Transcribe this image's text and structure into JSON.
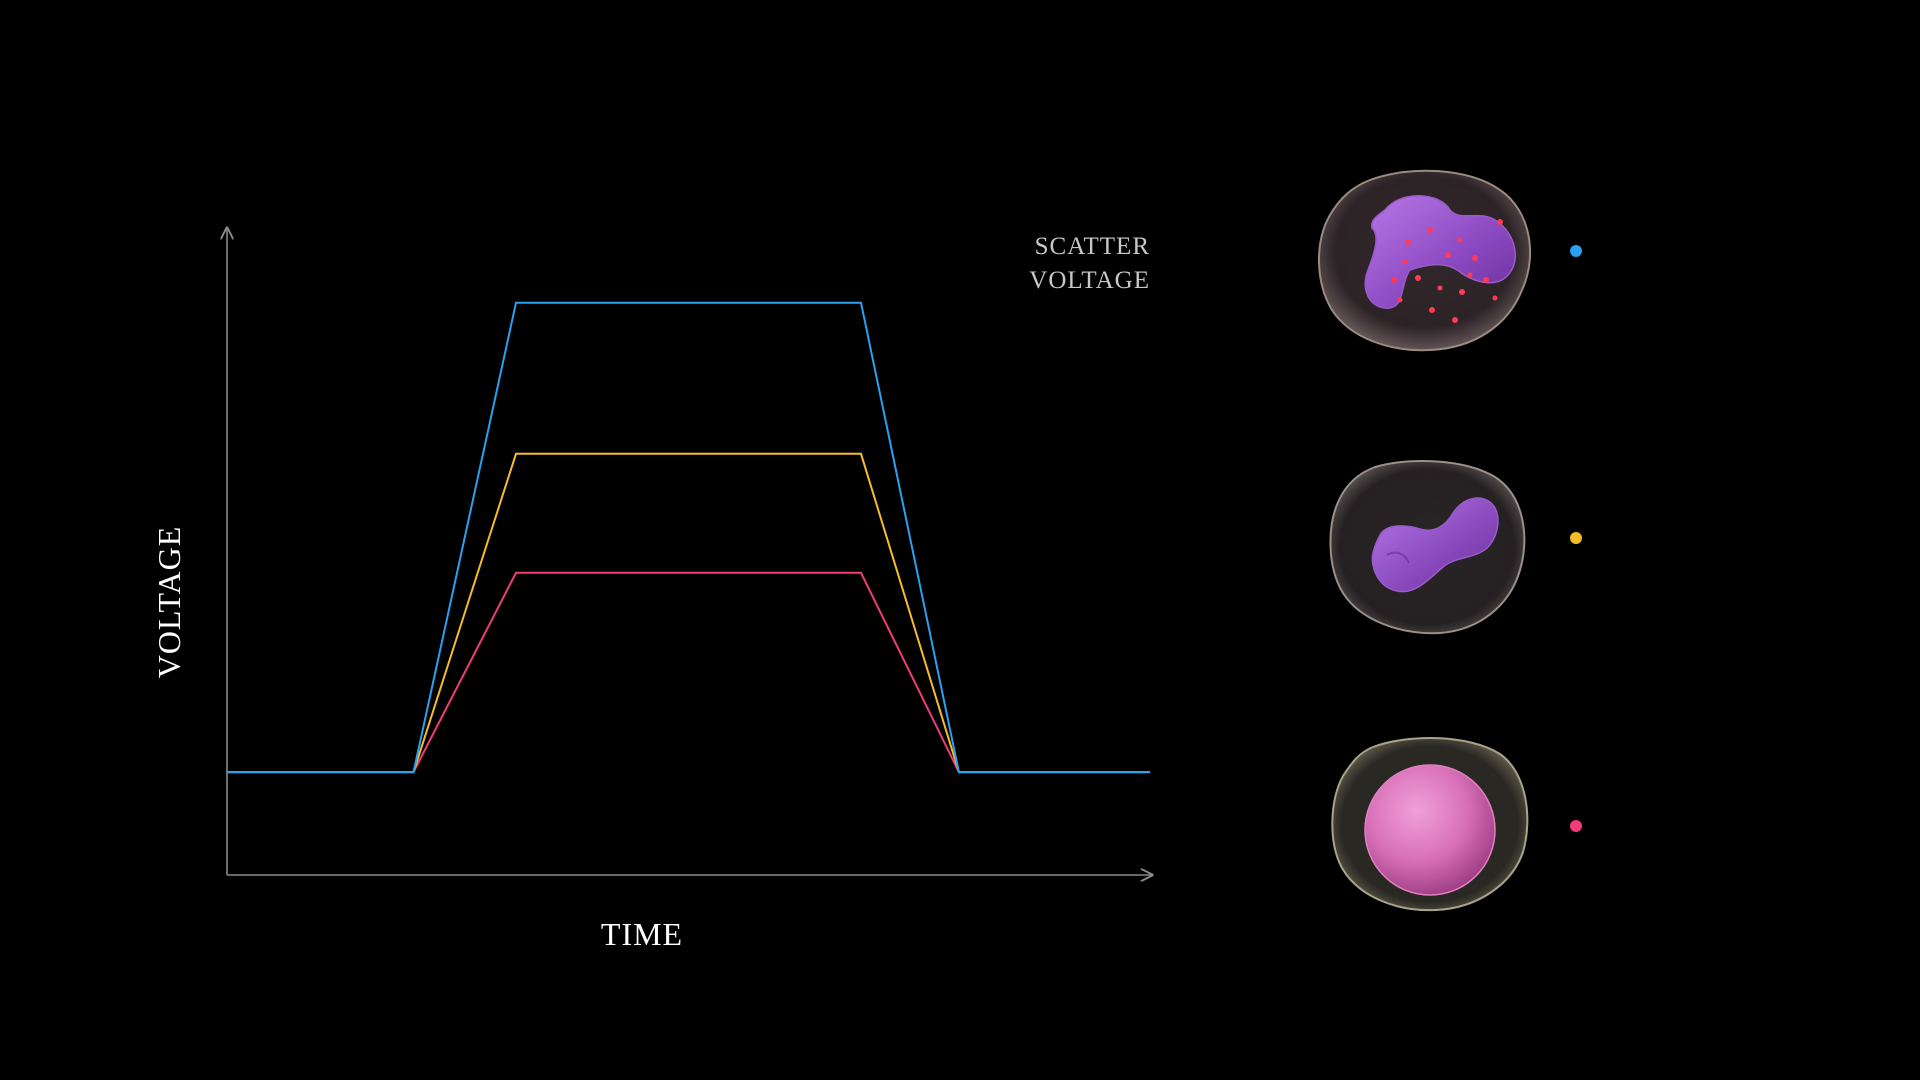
{
  "chart_data": {
    "type": "line",
    "xlabel": "TIME",
    "ylabel": "VOLTAGE",
    "annotation": [
      "SCATTER",
      "VOLTAGE"
    ],
    "grid": false,
    "x": [
      0,
      2,
      3.1,
      6.8,
      7.85,
      9.9
    ],
    "xlim": [
      0,
      9.9
    ],
    "ylim": [
      0,
      10
    ],
    "series": [
      {
        "color": "#2aa0f0",
        "values": [
          1.6,
          1.6,
          8.9,
          8.9,
          1.6,
          1.6
        ]
      },
      {
        "color": "#f5bd2a",
        "values": [
          1.6,
          1.6,
          6.55,
          6.55,
          1.6,
          1.6
        ]
      },
      {
        "color": "#f03c7a",
        "values": [
          1.6,
          1.6,
          4.7,
          4.7,
          1.6,
          1.6
        ]
      }
    ]
  },
  "legend": [
    {
      "cell": "granular-cell-icon",
      "color": "#2aa0f0"
    },
    {
      "cell": "lobed-cell-icon",
      "color": "#f5bd2a"
    },
    {
      "cell": "round-nucleus-cell-icon",
      "color": "#f03c7a"
    }
  ],
  "colors": {
    "axis": "#8a8a8a",
    "label": "#ffffff",
    "annotation": "#c8c8c8",
    "background": "#000000"
  }
}
